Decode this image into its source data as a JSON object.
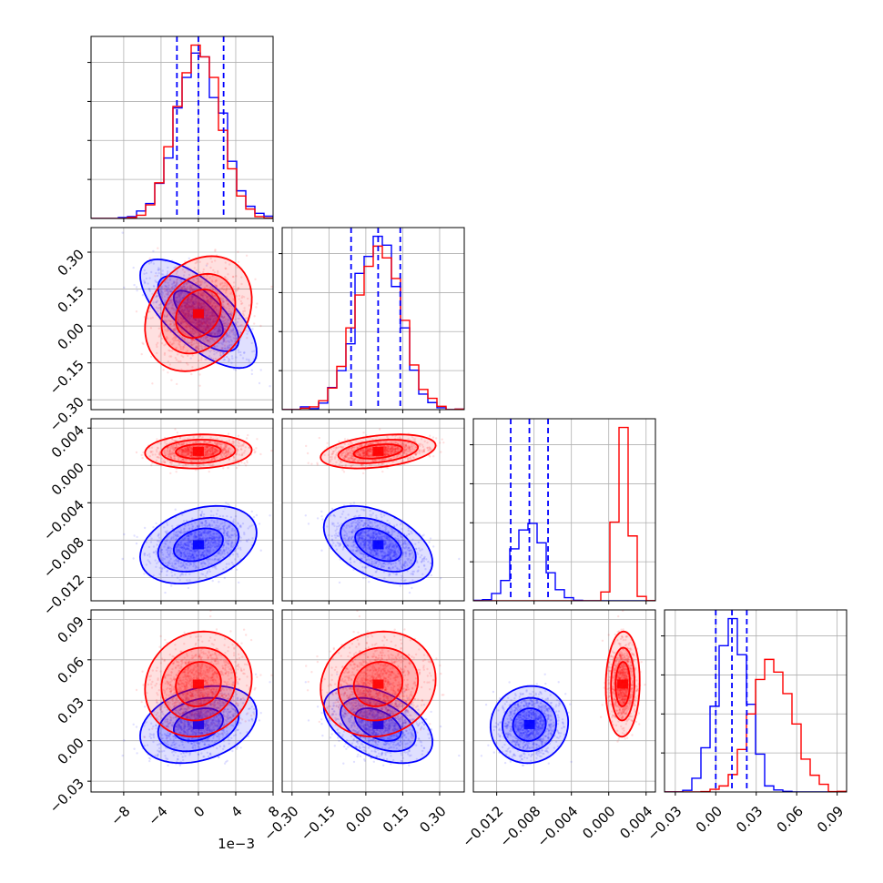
{
  "chart_data": {
    "type": "corner",
    "grid": true,
    "scatter_alpha": 0.12,
    "colors": {
      "blue": "#0000ff",
      "red": "#ff0000",
      "axis": "#000000",
      "grid": "#b0b0b0"
    },
    "series": [
      {
        "color": "blue",
        "mean": [
          0.0,
          0.05,
          -0.0085,
          0.012
        ],
        "std": [
          0.0024,
          0.085,
          0.0016,
          0.011
        ],
        "correlations": [
          {
            "pair": [
              0,
              1
            ],
            "r": -0.7
          },
          {
            "pair": [
              1,
              2
            ],
            "r": -0.45
          },
          {
            "pair": [
              0,
              3
            ],
            "r": 0.3
          },
          {
            "pair": [
              1,
              3
            ],
            "r": -0.45
          }
        ],
        "quantile_lines": [
          [
            -0.0023,
            0.0,
            0.0027
          ],
          [
            -0.06,
            0.05,
            0.14
          ],
          [
            -0.0105,
            -0.0085,
            -0.0065
          ],
          [
            0.0,
            0.012,
            0.023
          ]
        ]
      },
      {
        "color": "red",
        "mean": [
          0.0,
          0.05,
          0.0015,
          0.042
        ],
        "std": [
          0.0022,
          0.09,
          0.0007,
          0.015
        ],
        "correlations": [
          {
            "pair": [
              0,
              1
            ],
            "r": 0.25
          },
          {
            "pair": [
              1,
              2
            ],
            "r": 0.35
          },
          {
            "pair": [
              0,
              3
            ],
            "r": 0.1
          },
          {
            "pair": [
              1,
              3
            ],
            "r": 0.1
          }
        ]
      }
    ],
    "dims": [
      {
        "range": [
          -0.0115,
          0.008
        ],
        "ticks": [
          -8,
          -4,
          0,
          4,
          8
        ],
        "tick_scale": 0.001,
        "tick_labels": [
          "−8",
          "−4",
          "0",
          "4",
          "8"
        ],
        "offset_text": "1e−3"
      },
      {
        "range": [
          -0.34,
          0.4
        ],
        "ticks": [
          -0.3,
          -0.15,
          0.0,
          0.15,
          0.3
        ],
        "tick_scale": 1,
        "tick_labels": [
          "−0.30",
          "−0.15",
          "0.00",
          "0.15",
          "0.30"
        ],
        "offset_text": ""
      },
      {
        "range": [
          -0.0145,
          0.005
        ],
        "ticks": [
          -0.012,
          -0.008,
          -0.004,
          0.0,
          0.004
        ],
        "tick_scale": 1,
        "tick_labels": [
          "−0.012",
          "−0.008",
          "−0.004",
          "0.000",
          "0.004"
        ],
        "offset_text": ""
      },
      {
        "range": [
          -0.038,
          0.097
        ],
        "ticks": [
          -0.03,
          0.0,
          0.03,
          0.06,
          0.09
        ],
        "tick_scale": 1,
        "tick_labels": [
          "−0.03",
          "0.00",
          "0.03",
          "0.06",
          "0.09"
        ],
        "offset_text": ""
      }
    ]
  }
}
